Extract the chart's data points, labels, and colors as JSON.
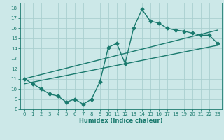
{
  "xlabel": "Humidex (Indice chaleur)",
  "background_color": "#cce8e8",
  "line_color": "#1a7a6e",
  "grid_color": "#aacfcf",
  "xlim": [
    -0.5,
    23.5
  ],
  "ylim": [
    8,
    18.5
  ],
  "xticks": [
    0,
    1,
    2,
    3,
    4,
    5,
    6,
    7,
    8,
    9,
    10,
    11,
    12,
    13,
    14,
    15,
    16,
    17,
    18,
    19,
    20,
    21,
    22,
    23
  ],
  "yticks": [
    8,
    9,
    10,
    11,
    12,
    13,
    14,
    15,
    16,
    17,
    18
  ],
  "main_x": [
    0,
    1,
    2,
    3,
    4,
    5,
    6,
    7,
    8,
    9,
    10,
    11,
    12,
    13,
    14,
    15,
    16,
    17,
    18,
    19,
    20,
    21,
    22,
    23
  ],
  "main_y": [
    11.0,
    10.5,
    10.0,
    9.5,
    9.3,
    8.7,
    9.0,
    8.5,
    9.0,
    10.7,
    14.1,
    14.5,
    12.5,
    16.0,
    17.85,
    16.7,
    16.5,
    16.0,
    15.8,
    15.7,
    15.5,
    15.3,
    15.3,
    14.5
  ],
  "line1_x": [
    0,
    23
  ],
  "line1_y": [
    11.0,
    15.8
  ],
  "line2_x": [
    0,
    23
  ],
  "line2_y": [
    10.5,
    14.3
  ],
  "marker_size": 2.5,
  "linewidth": 1.0,
  "tick_fontsize": 5.0,
  "xlabel_fontsize": 6.0
}
